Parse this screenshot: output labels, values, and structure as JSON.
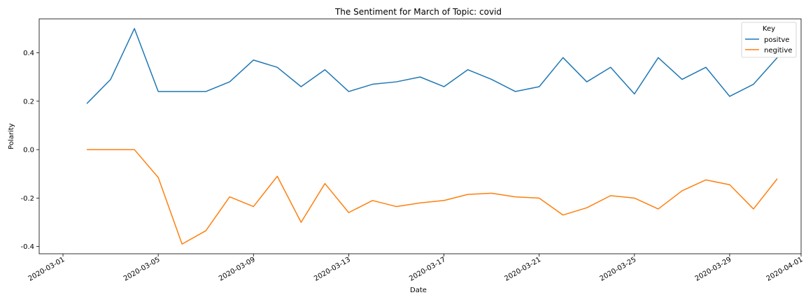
{
  "chart_data": {
    "type": "line",
    "title": "The Sentiment for March of Topic: covid",
    "xlabel": "Date",
    "ylabel": "Polarity",
    "xlim": [
      "2020-02-29",
      "2020-04-01"
    ],
    "ylim": [
      -0.43,
      0.54
    ],
    "grid": false,
    "legend": {
      "title": "Key",
      "placement": "top-right"
    },
    "x_ticks": [
      "2020-03-01",
      "2020-03-05",
      "2020-03-09",
      "2020-03-13",
      "2020-03-17",
      "2020-03-21",
      "2020-03-25",
      "2020-03-29",
      "2020-04-01"
    ],
    "y_ticks": [
      "-0.4",
      "-0.2",
      "0.0",
      "0.2",
      "0.4"
    ],
    "y_tick_values": [
      -0.4,
      -0.2,
      0.0,
      0.2,
      0.4
    ],
    "x": [
      "2020-03-02",
      "2020-03-03",
      "2020-03-04",
      "2020-03-05",
      "2020-03-06",
      "2020-03-07",
      "2020-03-08",
      "2020-03-09",
      "2020-03-10",
      "2020-03-11",
      "2020-03-12",
      "2020-03-13",
      "2020-03-14",
      "2020-03-15",
      "2020-03-16",
      "2020-03-17",
      "2020-03-18",
      "2020-03-19",
      "2020-03-20",
      "2020-03-21",
      "2020-03-22",
      "2020-03-23",
      "2020-03-24",
      "2020-03-25",
      "2020-03-26",
      "2020-03-27",
      "2020-03-28",
      "2020-03-29",
      "2020-03-30",
      "2020-03-31"
    ],
    "series": [
      {
        "name": "positve",
        "color": "#1f77b4",
        "values": [
          0.19,
          0.29,
          0.5,
          0.24,
          0.24,
          0.24,
          0.28,
          0.37,
          0.34,
          0.26,
          0.33,
          0.24,
          0.27,
          0.28,
          0.3,
          0.26,
          0.33,
          0.29,
          0.24,
          0.26,
          0.38,
          0.28,
          0.34,
          0.23,
          0.38,
          0.29,
          0.34,
          0.22,
          0.27,
          0.38
        ]
      },
      {
        "name": "negitive",
        "color": "#ff7f0e",
        "values": [
          0.0,
          0.0,
          0.0,
          -0.115,
          -0.39,
          -0.335,
          -0.195,
          -0.235,
          -0.11,
          -0.3,
          -0.14,
          -0.26,
          -0.21,
          -0.235,
          -0.22,
          -0.21,
          -0.185,
          -0.18,
          -0.195,
          -0.2,
          -0.27,
          -0.24,
          -0.19,
          -0.2,
          -0.245,
          -0.17,
          -0.125,
          -0.145,
          -0.245,
          -0.12
        ]
      }
    ]
  }
}
